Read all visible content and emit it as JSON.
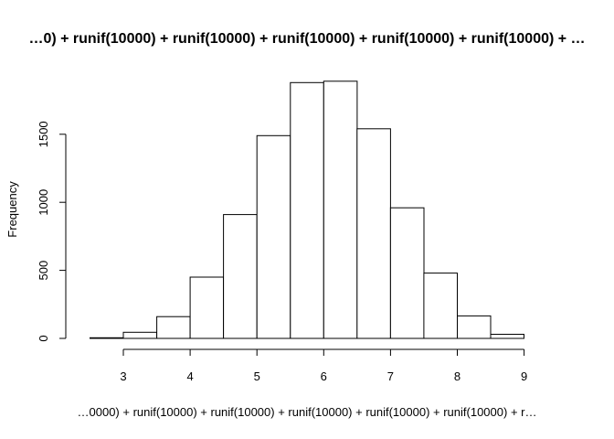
{
  "chart_data": {
    "type": "bar",
    "title": "…0) + runif(10000) + runif(10000) + runif(10000) + runif(10000) + runif(10000) + …",
    "xlabel": "…0000) + runif(10000) + runif(10000) + runif(10000) + runif(10000) + runif(10000) + r…",
    "ylabel": "Frequency",
    "bin_edges": [
      2.5,
      3.0,
      3.5,
      4.0,
      4.5,
      5.0,
      5.5,
      6.0,
      6.5,
      7.0,
      7.5,
      8.0,
      8.5,
      9.0
    ],
    "values": [
      5,
      45,
      160,
      450,
      910,
      1490,
      1880,
      1890,
      1540,
      960,
      480,
      165,
      30
    ],
    "xticks": [
      3,
      4,
      5,
      6,
      7,
      8,
      9
    ],
    "yticks": [
      0,
      500,
      1000,
      1500
    ],
    "xlim": [
      2.5,
      9.5
    ],
    "ylim": [
      0,
      1900
    ],
    "grid": false,
    "legend": "none"
  }
}
